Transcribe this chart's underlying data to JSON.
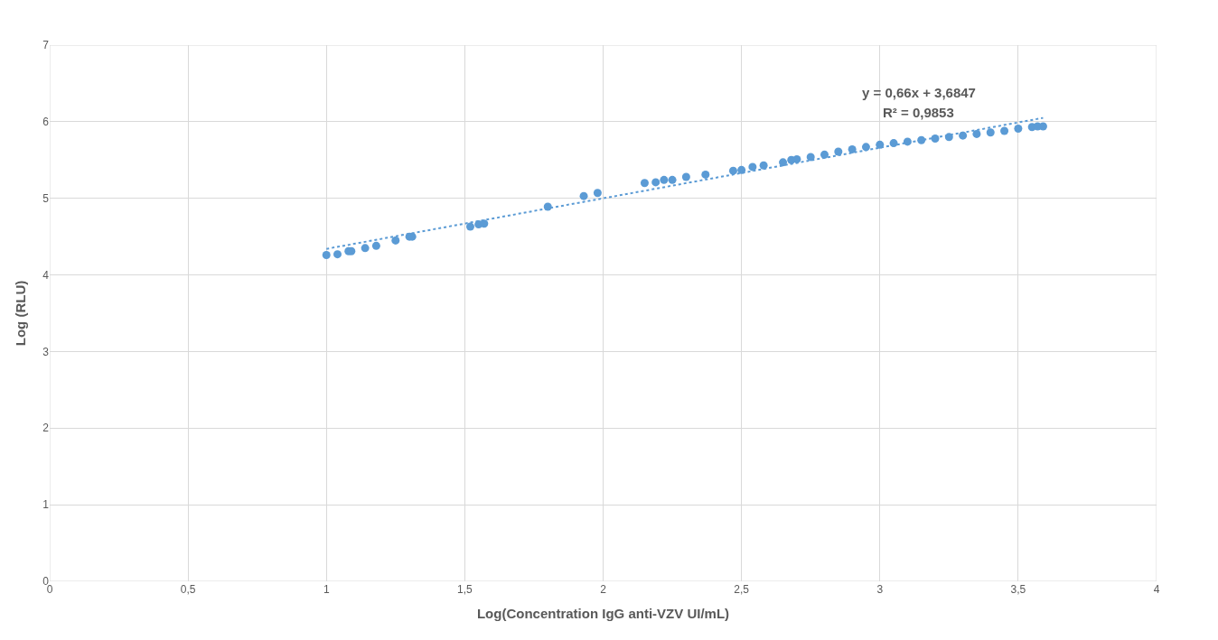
{
  "chart_data": {
    "type": "scatter",
    "xlabel": "Log(Concentration IgG anti-VZV UI/mL)",
    "ylabel": "Log (RLU)",
    "xlim": [
      0,
      4
    ],
    "xticks": [
      0,
      {
        "value": 0.5,
        "label": "0,5"
      },
      1,
      {
        "value": 1.5,
        "label": "1,5"
      },
      2,
      {
        "value": 2.5,
        "label": "2,5"
      },
      3,
      {
        "value": 3.5,
        "label": "3,5"
      },
      4
    ],
    "ylim": [
      0,
      7
    ],
    "yticks": [
      0,
      1,
      2,
      3,
      4,
      5,
      6,
      7
    ],
    "grid": true,
    "marker": "circle",
    "series": [
      {
        "color": "#5b9bd5",
        "x": [
          1.0,
          1.04,
          1.08,
          1.09,
          1.14,
          1.18,
          1.25,
          1.3,
          1.31,
          1.52,
          1.55,
          1.57,
          1.8,
          1.93,
          1.98,
          2.15,
          2.19,
          2.22,
          2.25,
          2.3,
          2.37,
          2.47,
          2.5,
          2.54,
          2.58,
          2.65,
          2.68,
          2.7,
          2.75,
          2.8,
          2.85,
          2.9,
          2.95,
          3.0,
          3.05,
          3.1,
          3.15,
          3.2,
          3.25,
          3.3,
          3.35,
          3.4,
          3.45,
          3.5,
          3.55,
          3.57,
          3.59
        ],
        "values": [
          4.26,
          4.27,
          4.31,
          4.31,
          4.35,
          4.38,
          4.45,
          4.5,
          4.5,
          4.63,
          4.66,
          4.67,
          4.89,
          5.03,
          5.07,
          5.2,
          5.21,
          5.24,
          5.24,
          5.28,
          5.31,
          5.36,
          5.37,
          5.41,
          5.43,
          5.47,
          5.5,
          5.51,
          5.54,
          5.57,
          5.61,
          5.64,
          5.67,
          5.7,
          5.72,
          5.74,
          5.76,
          5.78,
          5.8,
          5.82,
          5.84,
          5.86,
          5.88,
          5.91,
          5.93,
          5.94,
          5.94
        ]
      },
      {
        "type": "line",
        "color": "#5b9bd5",
        "line_style": "dotted",
        "marker": "none",
        "x": [
          1.0,
          3.59
        ],
        "values": [
          4.34,
          6.05
        ]
      }
    ],
    "annotations": [
      "y = 0,66x + 3,6847",
      "R² = 0,9853"
    ]
  }
}
